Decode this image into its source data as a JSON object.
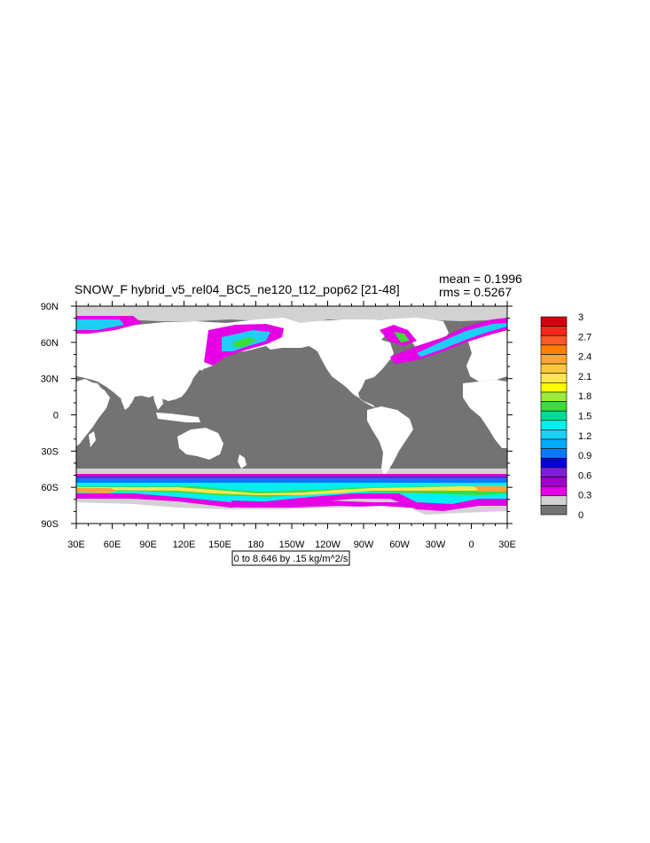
{
  "title": "SNOW_F hybrid_v5_rel04_BC5_ne120_t12_pop62 [21-48]",
  "stats": {
    "mean": "mean = 0.1996",
    "rms": "rms = 0.5267"
  },
  "range_label": "0 to 8.646 by .15 kg/m^2/s",
  "chart_data": {
    "type": "heatmap",
    "title": "SNOW_F hybrid_v5_rel04_BC5_ne120_t12_pop62 [21-48]",
    "x_ticks": [
      "30E",
      "60E",
      "90E",
      "120E",
      "150E",
      "180",
      "150W",
      "120W",
      "90W",
      "60W",
      "30W",
      "0",
      "30E"
    ],
    "y_ticks": [
      "90N",
      "60N",
      "30N",
      "0",
      "30S",
      "60S",
      "90S"
    ],
    "xlim": [
      30,
      390
    ],
    "ylim": [
      -90,
      90
    ],
    "colorbar": {
      "labels": [
        "3",
        "2.7",
        "2.4",
        "2.1",
        "1.8",
        "1.5",
        "1.2",
        "0.9",
        "0.6",
        "0.3",
        "0"
      ],
      "colors": [
        "#D2000F",
        "#F0281E",
        "#F85A28",
        "#FF7F00",
        "#FFA53C",
        "#FFC83C",
        "#FFE650",
        "#FFFF00",
        "#9BEB3C",
        "#3CDC3C",
        "#00DC96",
        "#00F0F0",
        "#1ECFF5",
        "#00AAFF",
        "#0A78FF",
        "#0000E6",
        "#7D1ED2",
        "#A000C8",
        "#E600E6",
        "#D2D2D2",
        "#737373"
      ]
    }
  }
}
